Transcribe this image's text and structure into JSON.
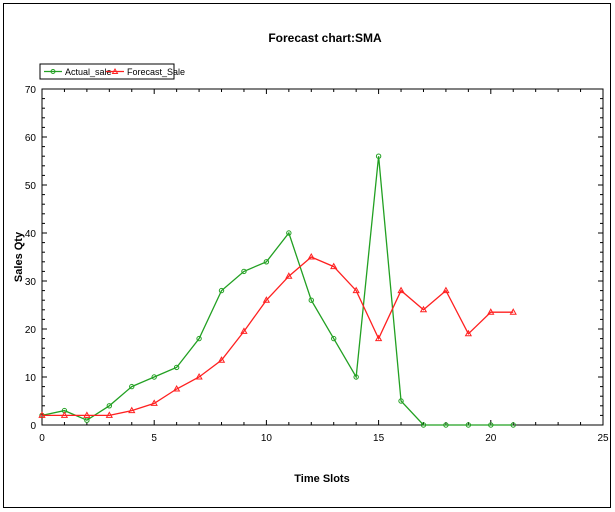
{
  "chart_data": {
    "type": "line",
    "title": "Forecast chart:SMA",
    "xlabel": "Time Slots",
    "ylabel": "Sales Qty",
    "xlim": [
      0,
      25
    ],
    "ylim": [
      0,
      70
    ],
    "xticks": [
      0,
      5,
      10,
      15,
      20,
      25
    ],
    "yticks": [
      0,
      10,
      20,
      30,
      40,
      50,
      60,
      70
    ],
    "grid": false,
    "legend_position": "top-left",
    "series": [
      {
        "name": "Actual_sale",
        "color": "#22a022",
        "marker": "circle",
        "x": [
          0,
          1,
          2,
          3,
          4,
          5,
          6,
          7,
          8,
          9,
          10,
          11,
          12,
          13,
          14,
          15,
          16,
          17,
          18,
          19,
          20,
          21
        ],
        "y": [
          2,
          3,
          1,
          4,
          8,
          10,
          12,
          18,
          28,
          32,
          34,
          40,
          26,
          18,
          10,
          56,
          5,
          0,
          0,
          0,
          0,
          0
        ]
      },
      {
        "name": "Forecast_Sale",
        "color": "#ff2020",
        "marker": "triangle",
        "x": [
          0,
          1,
          2,
          3,
          4,
          5,
          6,
          7,
          8,
          9,
          10,
          11,
          12,
          13,
          14,
          15,
          16,
          17,
          18,
          19,
          20,
          21
        ],
        "y": [
          2,
          2,
          2,
          2,
          3,
          4.5,
          7.5,
          10,
          13.5,
          19.5,
          26,
          31,
          35,
          33,
          28,
          18,
          28,
          24,
          28,
          19,
          23.5,
          23.5
        ]
      }
    ]
  }
}
